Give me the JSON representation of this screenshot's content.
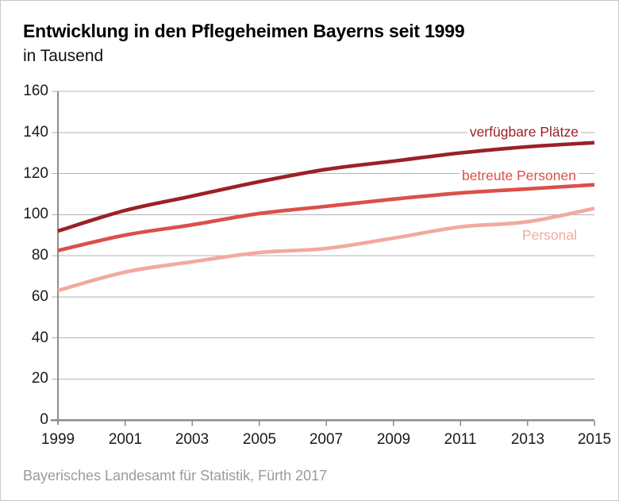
{
  "header": {
    "title": "Entwicklung in den Pflegeheimen Bayerns seit 1999",
    "subtitle": "in Tausend"
  },
  "footer": {
    "source": "Bayerisches Landesamt für Statistik, Fürth 2017"
  },
  "colors": {
    "series_dark_red": "#9a2127",
    "series_red": "#dc4f4a",
    "series_pink": "#f2a99e",
    "gridline": "#b3b3b3",
    "axis": "#8c8c8c",
    "tick": "#8c8c8c",
    "axis_text": "#1a1a1a",
    "source_text": "#9b9b9b",
    "frame_border": "#c8c8c8",
    "background": "#ffffff"
  },
  "chart_data": {
    "type": "line",
    "title": "Entwicklung in den Pflegeheimen Bayerns seit 1999",
    "subtitle": "in Tausend",
    "unit": "Tausend",
    "x": [
      1999,
      2001,
      2003,
      2005,
      2007,
      2009,
      2011,
      2013,
      2015
    ],
    "xtick_labels": [
      "1999",
      "2001",
      "2003",
      "2005",
      "2007",
      "2009",
      "2011",
      "2013",
      "2015"
    ],
    "series": [
      {
        "name": "verfügbare Plätze",
        "color": "#9a2127",
        "values": [
          92,
          102,
          109,
          116,
          122,
          126,
          130,
          133,
          135
        ]
      },
      {
        "name": "betreute Personen",
        "color": "#dc4f4a",
        "values": [
          82.5,
          90,
          95,
          100.5,
          104,
          107.5,
          110.5,
          112.5,
          114.5
        ]
      },
      {
        "name": "Personal",
        "color": "#f2a99e",
        "values": [
          63,
          72,
          77,
          81.5,
          83.5,
          88.5,
          94,
          96.5,
          103
        ]
      }
    ],
    "ylim": [
      0,
      160
    ],
    "ytick_step": 20,
    "grid": "horizontal",
    "legend_position": "inline-right",
    "source": "Bayerisches Landesamt für Statistik, Fürth 2017"
  }
}
